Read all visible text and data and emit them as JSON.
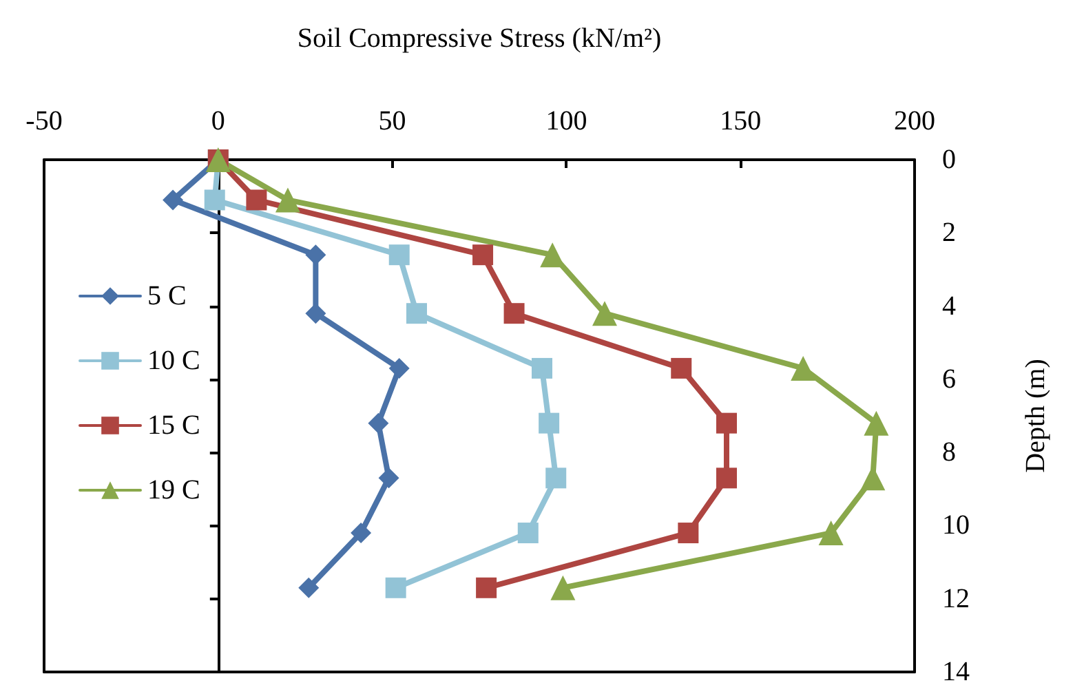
{
  "chart_data": {
    "type": "line",
    "xlabel": "Soil Compressive Stress (kN/m²)",
    "ylabel": "Depth (m)",
    "xlim": [
      -50,
      200
    ],
    "xticks": [
      -50,
      0,
      50,
      100,
      150,
      200
    ],
    "ylim": [
      14,
      0
    ],
    "yticks": [
      0,
      2,
      4,
      6,
      8,
      10,
      12,
      14
    ],
    "legend": "left",
    "series": [
      {
        "name": "5 C",
        "color": "#4a72a8",
        "marker": "diamond",
        "x": [
          0,
          -13,
          28,
          28,
          52,
          46,
          49,
          41,
          26
        ],
        "values": [
          0,
          1.1,
          2.6,
          4.2,
          5.7,
          7.2,
          8.7,
          10.2,
          11.7
        ]
      },
      {
        "name": "10 C",
        "color": "#92c3d6",
        "marker": "square",
        "x": [
          0,
          -1,
          52,
          57,
          93,
          95,
          97,
          89,
          51
        ],
        "values": [
          0,
          1.1,
          2.6,
          4.2,
          5.7,
          7.2,
          8.7,
          10.2,
          11.7
        ]
      },
      {
        "name": "15 C",
        "color": "#ae4541",
        "marker": "square",
        "x": [
          0,
          11,
          76,
          85,
          133,
          146,
          146,
          135,
          77
        ],
        "values": [
          0,
          1.1,
          2.6,
          4.2,
          5.7,
          7.2,
          8.7,
          10.2,
          11.7
        ]
      },
      {
        "name": "19 C",
        "color": "#8aa84b",
        "marker": "triangle",
        "x": [
          0,
          20,
          96,
          111,
          168,
          189,
          188,
          176,
          99
        ],
        "values": [
          0,
          1.1,
          2.6,
          4.2,
          5.7,
          7.2,
          8.7,
          10.2,
          11.7
        ]
      }
    ]
  }
}
